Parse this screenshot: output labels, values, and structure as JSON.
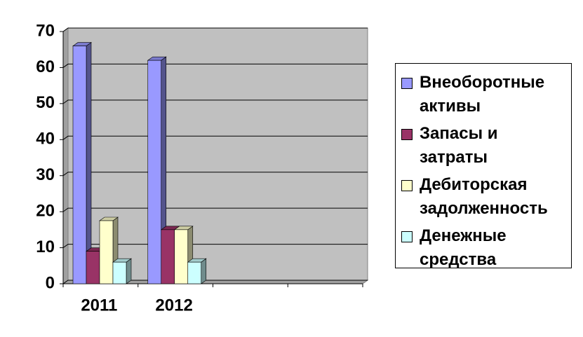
{
  "chart_data": {
    "type": "bar3d",
    "categories": [
      "2011",
      "2012",
      null,
      null
    ],
    "series": [
      {
        "name": "Внеоборотные активы",
        "color": "#9999ff",
        "values": [
          66,
          62,
          null,
          null
        ]
      },
      {
        "name": "Запасы и затраты",
        "color": "#993366",
        "values": [
          9,
          15,
          null,
          null
        ]
      },
      {
        "name": "Дебиторская задолженность",
        "color": "#ffffcc",
        "values": [
          17.5,
          15,
          null,
          null
        ]
      },
      {
        "name": "Денежные средства",
        "color": "#ccffff",
        "values": [
          6,
          6,
          null,
          null
        ]
      }
    ],
    "ylim": [
      0,
      70
    ],
    "yticks": [
      0,
      10,
      20,
      30,
      40,
      50,
      60,
      70
    ],
    "grid": true,
    "legend": "right"
  }
}
